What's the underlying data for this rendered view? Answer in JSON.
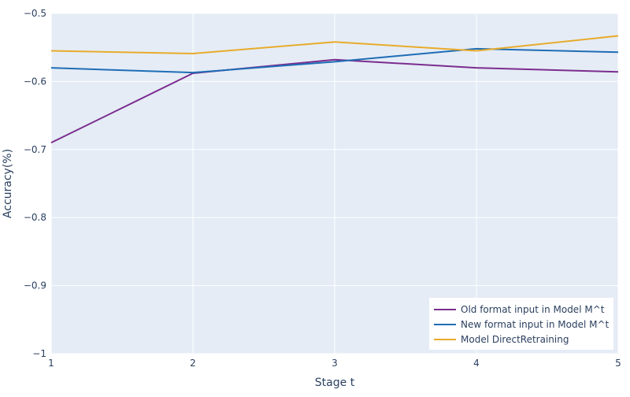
{
  "chart_data": {
    "type": "line",
    "title": "",
    "xlabel": "Stage t",
    "ylabel": "Accuracy(%)",
    "x": [
      1,
      2,
      3,
      4,
      5
    ],
    "xlim": [
      1,
      5
    ],
    "ylim": [
      -1,
      -0.5
    ],
    "x_ticks": [
      "1",
      "2",
      "3",
      "4",
      "5"
    ],
    "y_ticks": [
      "−0.5",
      "−0.6",
      "−0.7",
      "−0.8",
      "−0.9",
      "−1"
    ],
    "y_tick_values": [
      -0.5,
      -0.6,
      -0.7,
      -0.8,
      -0.9,
      -1
    ],
    "grid": true,
    "legend_position": "bottom-right",
    "series": [
      {
        "name": "Old format input in Model M^t",
        "color": "#7b2d8e",
        "values": [
          -0.69,
          -0.588,
          -0.568,
          -0.58,
          -0.586
        ]
      },
      {
        "name": "New format input in Model M^t",
        "color": "#1f6db5",
        "values": [
          -0.58,
          -0.587,
          -0.571,
          -0.552,
          -0.557
        ]
      },
      {
        "name": "Model DirectRetraining",
        "color": "#e8ab2c",
        "values": [
          -0.555,
          -0.559,
          -0.542,
          -0.555,
          -0.533
        ]
      }
    ]
  }
}
